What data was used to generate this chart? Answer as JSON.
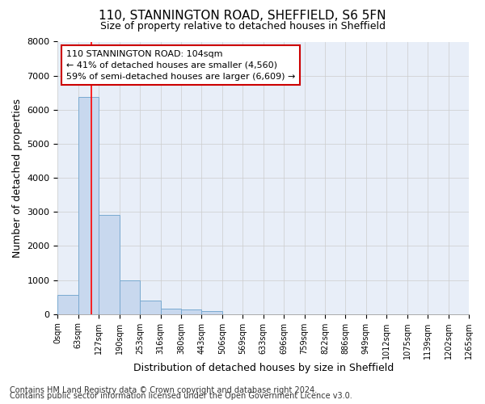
{
  "title1": "110, STANNINGTON ROAD, SHEFFIELD, S6 5FN",
  "title2": "Size of property relative to detached houses in Sheffield",
  "xlabel": "Distribution of detached houses by size in Sheffield",
  "ylabel": "Number of detached properties",
  "footer1": "Contains HM Land Registry data © Crown copyright and database right 2024.",
  "footer2": "Contains public sector information licensed under the Open Government Licence v3.0.",
  "bar_values": [
    570,
    6380,
    2920,
    990,
    390,
    170,
    130,
    90,
    0,
    0,
    0,
    0,
    0,
    0,
    0,
    0,
    0,
    0,
    0,
    0
  ],
  "bin_labels": [
    "0sqm",
    "63sqm",
    "127sqm",
    "190sqm",
    "253sqm",
    "316sqm",
    "380sqm",
    "443sqm",
    "506sqm",
    "569sqm",
    "633sqm",
    "696sqm",
    "759sqm",
    "822sqm",
    "886sqm",
    "949sqm",
    "1012sqm",
    "1075sqm",
    "1139sqm",
    "1202sqm",
    "1265sqm"
  ],
  "bar_color": "#c8d8ee",
  "bar_edgecolor": "#7aaad0",
  "grid_color": "#cccccc",
  "plot_bg_color": "#e8eef8",
  "fig_bg_color": "#ffffff",
  "red_line_x": 1.64,
  "annotation_text": "110 STANNINGTON ROAD: 104sqm\n← 41% of detached houses are smaller (4,560)\n59% of semi-detached houses are larger (6,609) →",
  "annotation_box_facecolor": "#ffffff",
  "annotation_box_edgecolor": "#cc0000",
  "ylim": [
    0,
    8000
  ],
  "yticks": [
    0,
    1000,
    2000,
    3000,
    4000,
    5000,
    6000,
    7000,
    8000
  ],
  "title1_fontsize": 11,
  "title2_fontsize": 9,
  "xlabel_fontsize": 9,
  "ylabel_fontsize": 9,
  "tick_fontsize": 8,
  "annot_fontsize": 8,
  "footer_fontsize": 7
}
